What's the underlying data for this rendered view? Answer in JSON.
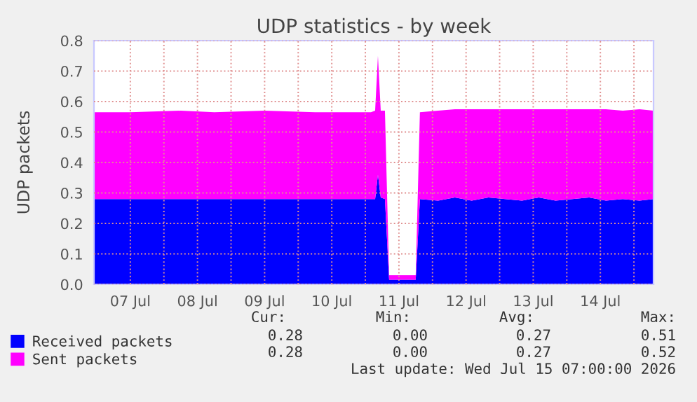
{
  "chart_data": {
    "type": "area",
    "title": "UDP statistics - by week",
    "ylabel": "UDP packets",
    "stacked": true,
    "x": [
      "2026-07-06T23:00",
      "2026-07-07T12:00",
      "2026-07-08T06:00",
      "2026-07-08T18:00",
      "2026-07-09T12:00",
      "2026-07-10T06:00",
      "2026-07-10T18:00",
      "2026-07-11T02:00",
      "2026-07-11T03:30",
      "2026-07-11T04:30",
      "2026-07-11T05:30",
      "2026-07-11T07:00",
      "2026-07-11T08:30",
      "2026-07-11T18:00",
      "2026-07-11T19:30",
      "2026-07-12T02:00",
      "2026-07-12T08:00",
      "2026-07-12T14:00",
      "2026-07-12T20:00",
      "2026-07-13T02:00",
      "2026-07-13T08:00",
      "2026-07-13T14:00",
      "2026-07-13T20:00",
      "2026-07-14T02:00",
      "2026-07-14T08:00",
      "2026-07-14T14:00",
      "2026-07-14T20:00",
      "2026-07-15T02:00",
      "2026-07-15T07:00"
    ],
    "series": [
      {
        "name": "Received packets",
        "color": "#0000ff",
        "values": [
          0.28,
          0.28,
          0.28,
          0.28,
          0.28,
          0.28,
          0.28,
          0.28,
          0.28,
          0.36,
          0.285,
          0.28,
          0.015,
          0.015,
          0.28,
          0.275,
          0.285,
          0.275,
          0.285,
          0.28,
          0.275,
          0.285,
          0.275,
          0.28,
          0.285,
          0.275,
          0.28,
          0.275,
          0.28
        ]
      },
      {
        "name": "Sent packets",
        "color": "#ff00ff",
        "values": [
          0.285,
          0.285,
          0.29,
          0.285,
          0.29,
          0.285,
          0.285,
          0.285,
          0.29,
          0.39,
          0.285,
          0.29,
          0.015,
          0.015,
          0.285,
          0.295,
          0.29,
          0.3,
          0.29,
          0.295,
          0.3,
          0.29,
          0.3,
          0.295,
          0.29,
          0.3,
          0.29,
          0.3,
          0.29
        ]
      }
    ],
    "xlim": [
      "2026-07-06T23:00",
      "2026-07-15T07:00"
    ],
    "xticks": [
      {
        "value": "2026-07-07T12:00",
        "label": "07 Jul"
      },
      {
        "value": "2026-07-08T00:00",
        "label": null
      },
      {
        "value": "2026-07-08T12:00",
        "label": "08 Jul"
      },
      {
        "value": "2026-07-09T00:00",
        "label": null
      },
      {
        "value": "2026-07-09T12:00",
        "label": "09 Jul"
      },
      {
        "value": "2026-07-10T00:00",
        "label": null
      },
      {
        "value": "2026-07-10T12:00",
        "label": "10 Jul"
      },
      {
        "value": "2026-07-11T00:00",
        "label": null
      },
      {
        "value": "2026-07-11T12:00",
        "label": "11 Jul"
      },
      {
        "value": "2026-07-12T00:00",
        "label": null
      },
      {
        "value": "2026-07-12T12:00",
        "label": "12 Jul"
      },
      {
        "value": "2026-07-13T00:00",
        "label": null
      },
      {
        "value": "2026-07-13T12:00",
        "label": "13 Jul"
      },
      {
        "value": "2026-07-14T00:00",
        "label": null
      },
      {
        "value": "2026-07-14T12:00",
        "label": "14 Jul"
      },
      {
        "value": "2026-07-15T00:00",
        "label": null
      }
    ],
    "ylim": [
      0,
      0.8
    ],
    "yticks": [
      {
        "value": 0,
        "label": "0.0"
      },
      {
        "value": 0.1,
        "label": "0.1"
      },
      {
        "value": 0.2,
        "label": "0.2"
      },
      {
        "value": 0.3,
        "label": "0.3"
      },
      {
        "value": 0.4,
        "label": "0.4"
      },
      {
        "value": 0.5,
        "label": "0.5"
      },
      {
        "value": 0.6,
        "label": "0.6"
      },
      {
        "value": 0.7,
        "label": "0.7"
      },
      {
        "value": 0.8,
        "label": "0.8"
      }
    ],
    "grid": true,
    "legend": "bottom",
    "annotations": [
      "Cur:",
      "Min:",
      "Avg:",
      "Max:",
      "0.28",
      "0.00",
      "0.27",
      "0.51",
      "0.28",
      "0.00",
      "0.27",
      "0.52",
      "Last update: Wed Jul 15 07:00:00 2026"
    ]
  }
}
